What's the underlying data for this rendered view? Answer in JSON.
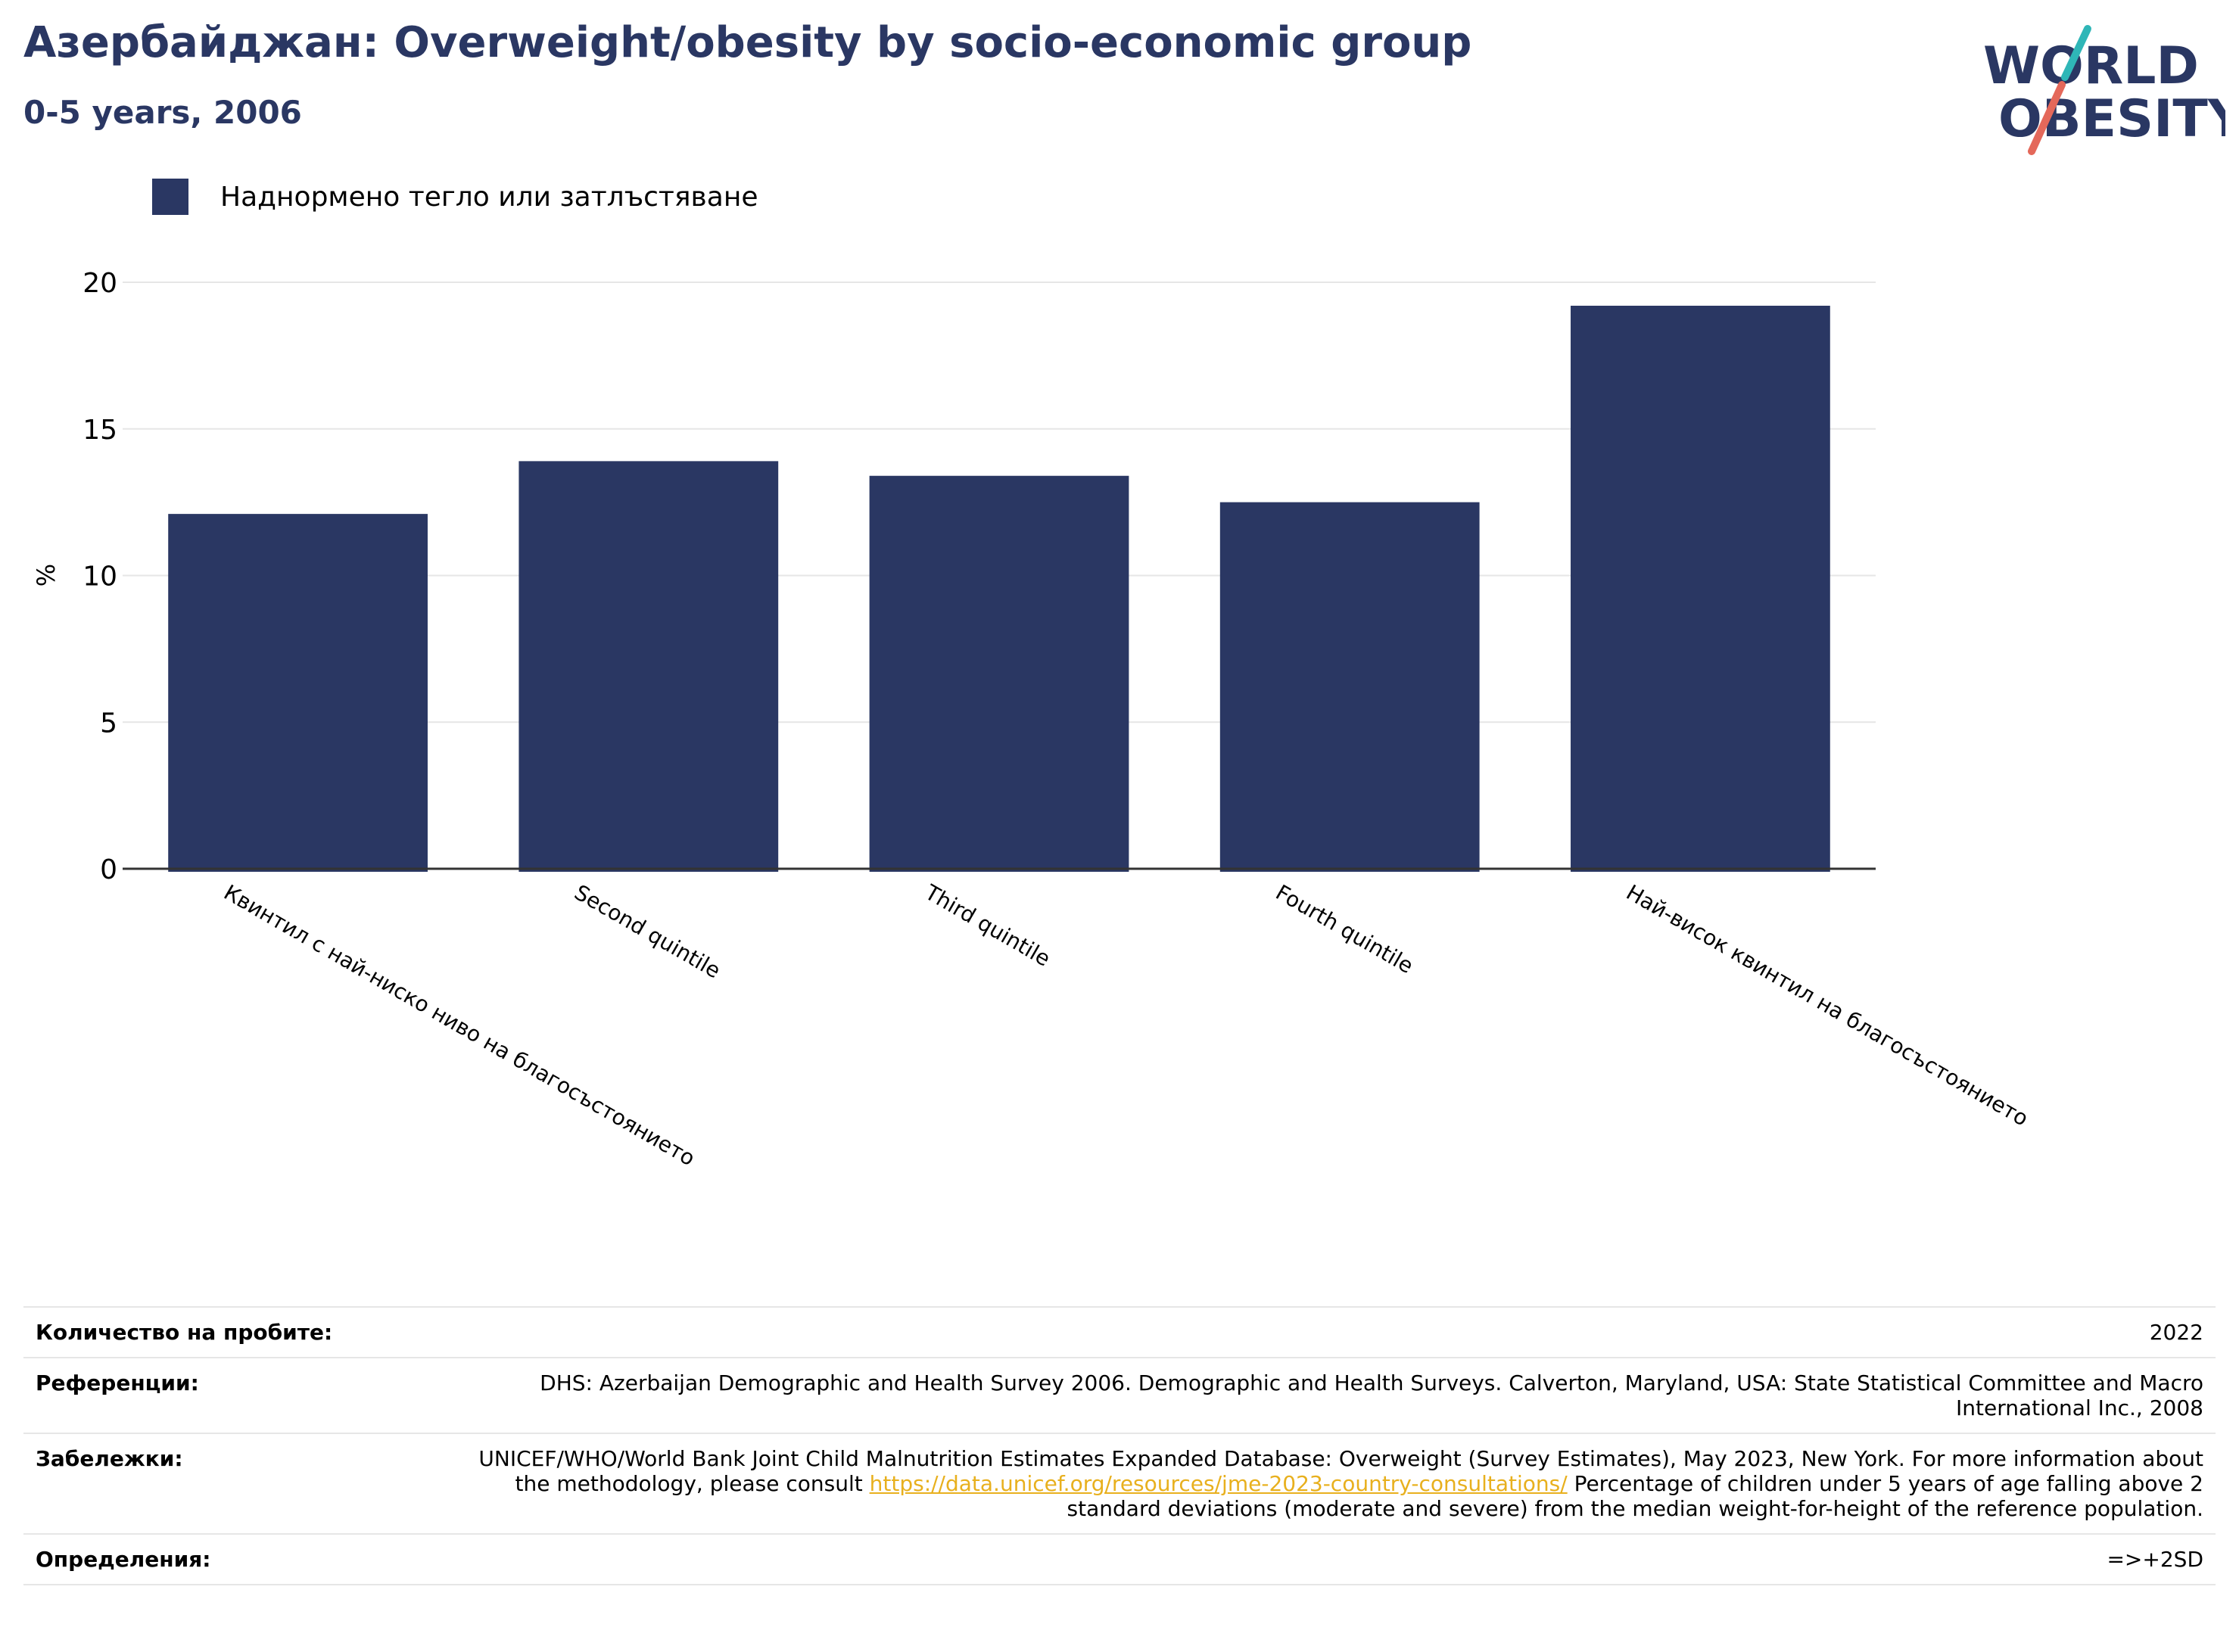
{
  "header": {
    "title": "Азербайджан: Overweight/obesity by socio-economic group",
    "subtitle": "0-5 years, 2006"
  },
  "logo": {
    "line1": "WORLD",
    "line2": "OBESITY",
    "text_color": "#2a3763",
    "accent_teal": "#2fb6b7",
    "accent_red": "#e4685a"
  },
  "colors": {
    "bar": "#2a3763",
    "grid": "#e6e6e6",
    "axis": "#333333"
  },
  "chart_data": {
    "type": "bar",
    "categories": [
      "Квинтил с най-ниско ниво на благосъстоянието",
      "Second quintile",
      "Third quintile",
      "Fourth quintile",
      "Най-висок квинтил на благосъстоянието"
    ],
    "series": [
      {
        "name": "Наднормено тегло или затлъстяване",
        "values": [
          12.1,
          13.9,
          13.4,
          12.5,
          19.2
        ]
      }
    ],
    "ylabel": "%",
    "ylim": [
      0,
      20
    ],
    "yticks": [
      0,
      5,
      10,
      15,
      20
    ],
    "grid": true,
    "legend": "top-left"
  },
  "info": {
    "rows": [
      {
        "key": "Количество на пробите:",
        "value": "2022"
      },
      {
        "key": "Референции:",
        "value": "DHS: Azerbaijan Demographic and Health Survey 2006. Demographic and Health Surveys. Calverton, Maryland, USA: State Statistical Committee and Macro International Inc., 2008"
      },
      {
        "key": "Забележки:",
        "value_before": "UNICEF/WHO/World Bank Joint Child Malnutrition Estimates Expanded Database: Overweight (Survey Estimates), May 2023, New York. For more information about the methodology, please consult ",
        "link": "https://data.unicef.org/resources/jme-2023-country-consultations/",
        "value_after": " Percentage of children under 5 years of age falling above 2 standard deviations (moderate and severe) from the median weight-for-height of the reference population."
      },
      {
        "key": "Определения:",
        "value": "=>+2SD"
      }
    ]
  }
}
